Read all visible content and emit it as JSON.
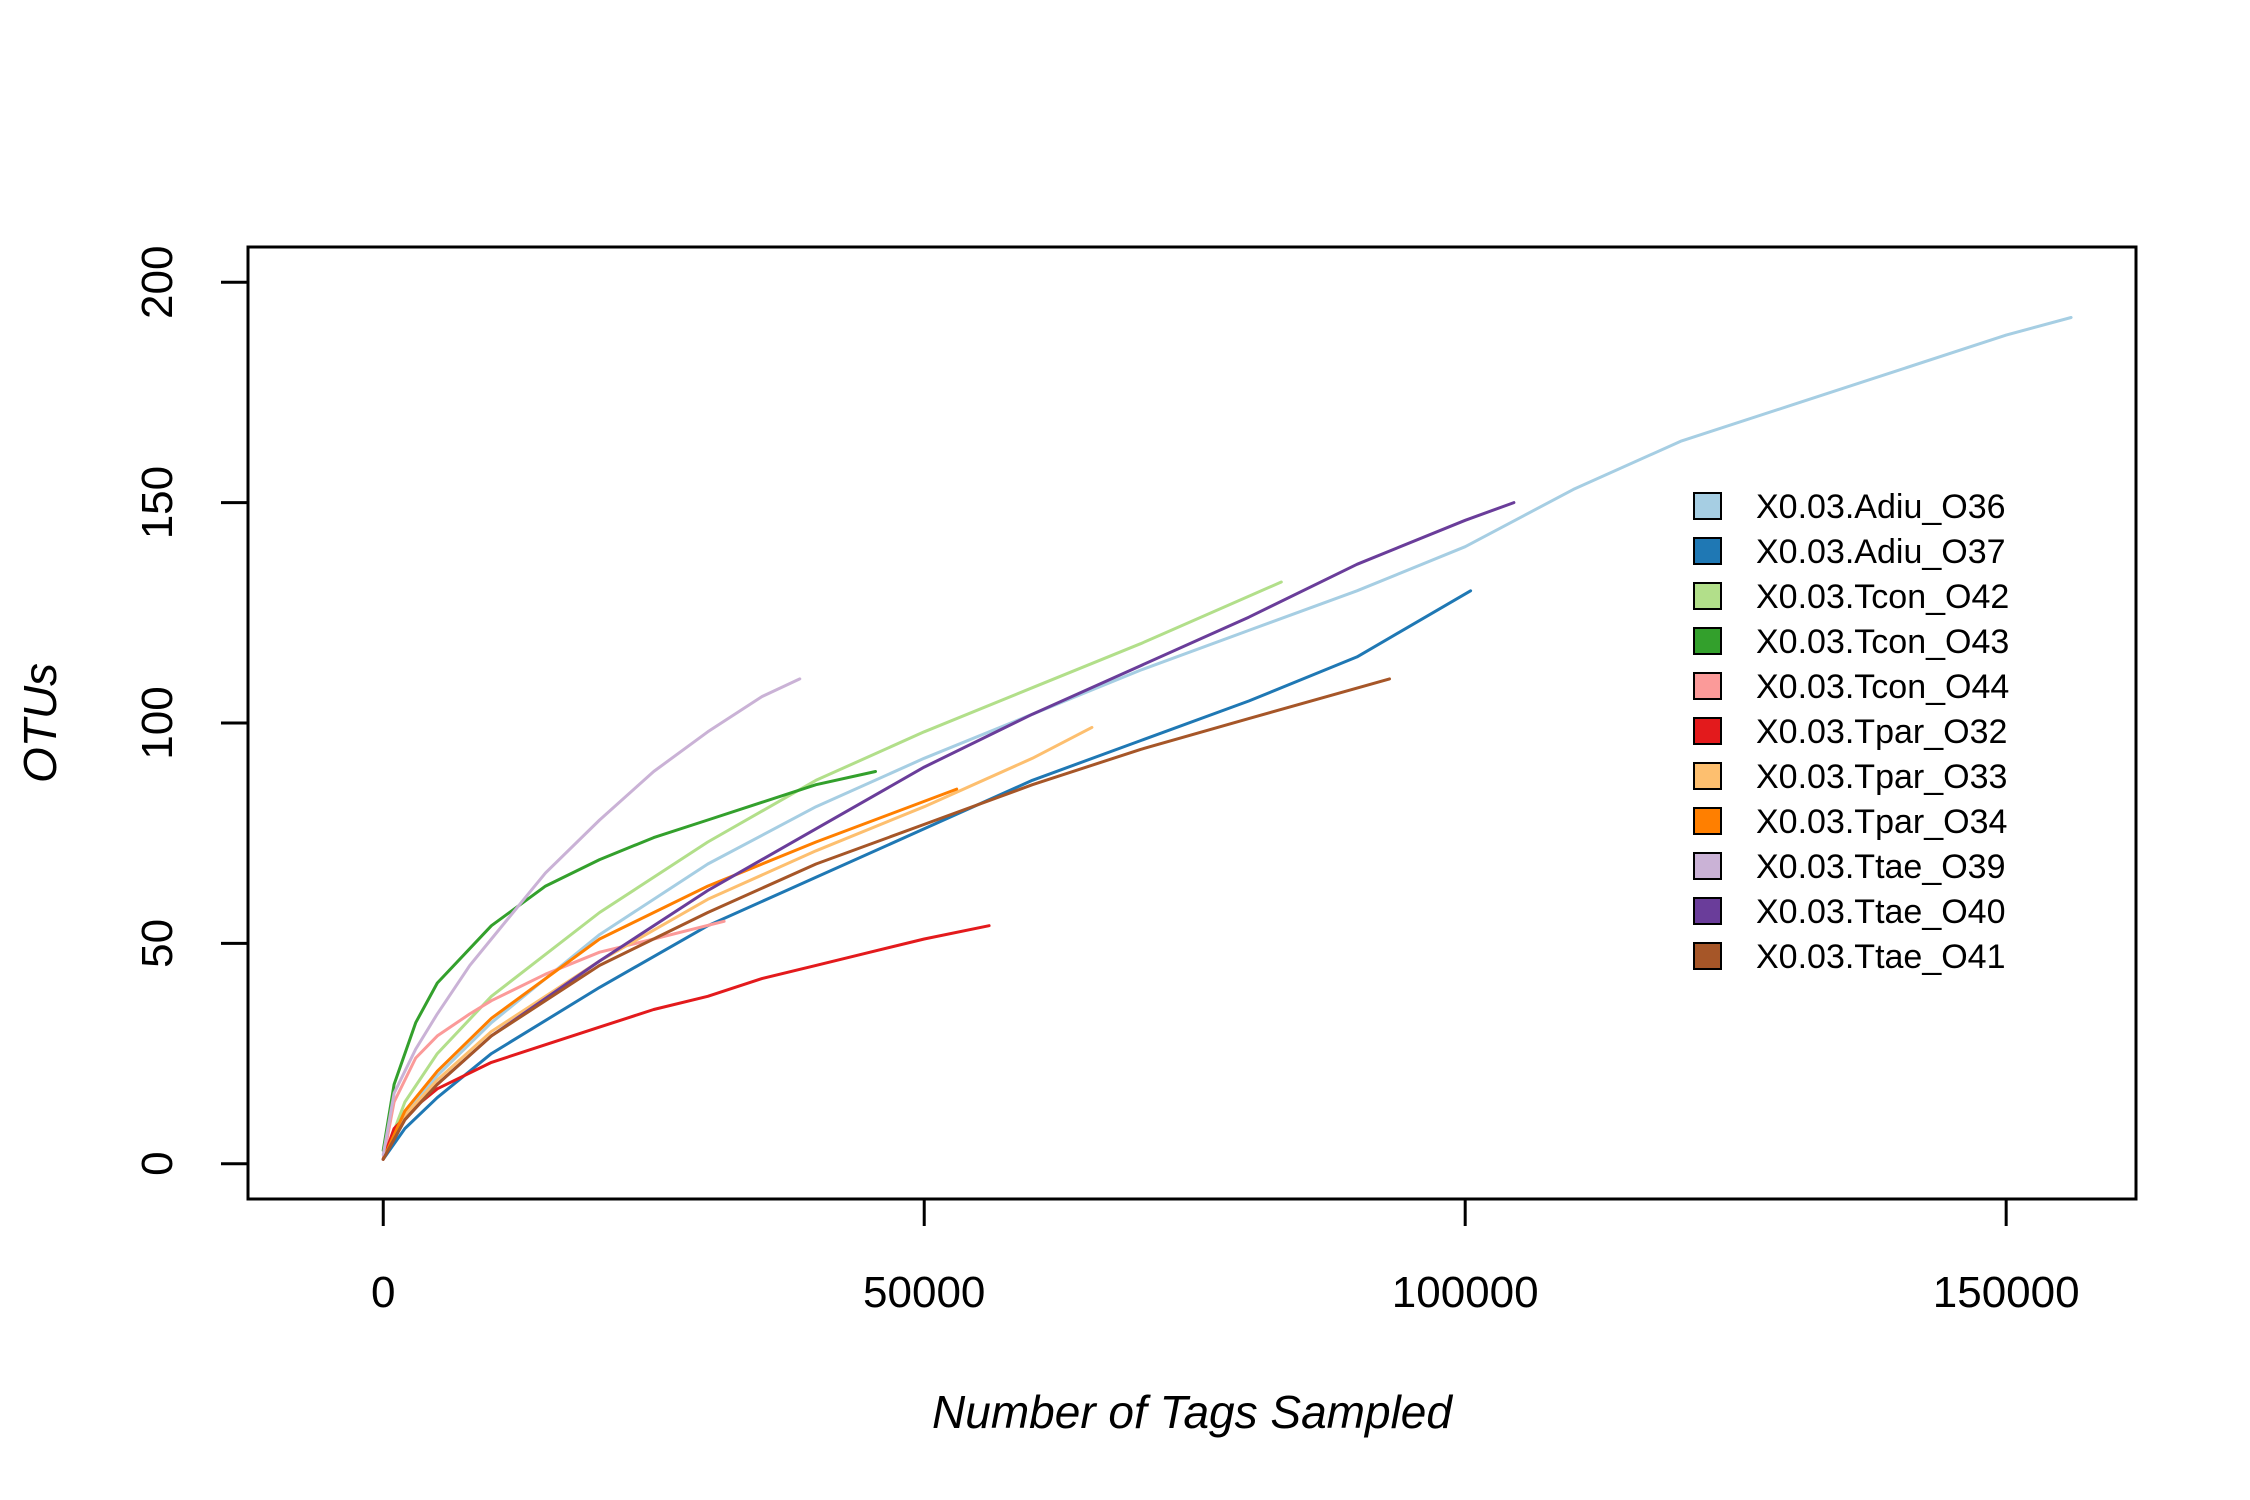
{
  "chart_data": {
    "type": "line",
    "title": "",
    "xlabel": "Number of Tags Sampled",
    "ylabel": "OTUs",
    "xlim": [
      -12500,
      162000
    ],
    "ylim": [
      -8,
      208
    ],
    "xticks": [
      0,
      50000,
      100000,
      150000
    ],
    "xtick_labels": [
      "0",
      "50000",
      "100000",
      "150000"
    ],
    "yticks": [
      0,
      50,
      100,
      150,
      200
    ],
    "ytick_labels": [
      "0",
      "50",
      "100",
      "150",
      "200"
    ],
    "grid": false,
    "legend_position": "right",
    "series": [
      {
        "name": "X0.03.Adiu_O36",
        "color": "#A6CEE3",
        "x": [
          0,
          2000,
          5000,
          10000,
          20000,
          30000,
          40000,
          50000,
          60000,
          70000,
          80000,
          90000,
          100000,
          110000,
          120000,
          130000,
          140000,
          150000,
          156000
        ],
        "y": [
          1,
          11,
          20,
          32,
          52,
          68,
          81,
          92,
          102,
          112,
          121,
          130,
          140,
          153,
          164,
          172,
          180,
          188,
          192
        ]
      },
      {
        "name": "X0.03.Adiu_O37",
        "color": "#1F78B4",
        "x": [
          0,
          2000,
          5000,
          10000,
          20000,
          30000,
          40000,
          50000,
          60000,
          70000,
          80000,
          90000,
          100500
        ],
        "y": [
          1,
          8,
          15,
          25,
          40,
          54,
          65,
          76,
          87,
          96,
          105,
          115,
          130
        ]
      },
      {
        "name": "X0.03.Tcon_O42",
        "color": "#B2DF8A",
        "x": [
          0,
          2000,
          5000,
          10000,
          20000,
          30000,
          40000,
          50000,
          60000,
          70000,
          83000
        ],
        "y": [
          1,
          14,
          25,
          38,
          57,
          73,
          87,
          98,
          108,
          118,
          132
        ]
      },
      {
        "name": "X0.03.Tcon_O43",
        "color": "#33A02C",
        "x": [
          0,
          1000,
          3000,
          5000,
          10000,
          15000,
          20000,
          25000,
          30000,
          35000,
          40000,
          45500
        ],
        "y": [
          3,
          18,
          32,
          41,
          54,
          63,
          69,
          74,
          78,
          82,
          86,
          89
        ]
      },
      {
        "name": "X0.03.Tcon_O44",
        "color": "#FB9A99",
        "x": [
          0,
          1000,
          3000,
          5000,
          8000,
          10000,
          15000,
          20000,
          25000,
          31500
        ],
        "y": [
          1,
          14,
          24,
          29,
          34,
          37,
          43,
          48,
          51,
          55
        ]
      },
      {
        "name": "X0.03.Tpar_O32",
        "color": "#E31A1C",
        "x": [
          0,
          1000,
          3000,
          5000,
          10000,
          15000,
          20000,
          25000,
          30000,
          35000,
          40000,
          45000,
          50000,
          56000
        ],
        "y": [
          1,
          8,
          13,
          17,
          23,
          27,
          31,
          35,
          38,
          42,
          45,
          48,
          51,
          54
        ]
      },
      {
        "name": "X0.03.Tpar_O33",
        "color": "#FDBF6F",
        "x": [
          0,
          2000,
          5000,
          10000,
          20000,
          30000,
          40000,
          50000,
          60000,
          65500
        ],
        "y": [
          1,
          11,
          19,
          30,
          46,
          60,
          71,
          81,
          92,
          99
        ]
      },
      {
        "name": "X0.03.Tpar_O34",
        "color": "#FF7F00",
        "x": [
          0,
          2000,
          5000,
          10000,
          20000,
          30000,
          40000,
          53000
        ],
        "y": [
          1,
          12,
          21,
          33,
          51,
          63,
          73,
          85
        ]
      },
      {
        "name": "X0.03.Ttae_O39",
        "color": "#CAB2D6",
        "x": [
          0,
          1000,
          3000,
          5000,
          8000,
          10000,
          15000,
          20000,
          25000,
          30000,
          35000,
          38500
        ],
        "y": [
          2,
          16,
          26,
          34,
          45,
          51,
          66,
          78,
          89,
          98,
          106,
          110
        ]
      },
      {
        "name": "X0.03.Ttae_O40",
        "color": "#6A3D9A",
        "x": [
          0,
          2000,
          5000,
          10000,
          20000,
          30000,
          40000,
          50000,
          60000,
          70000,
          80000,
          90000,
          100000,
          104500
        ],
        "y": [
          1,
          10,
          18,
          29,
          46,
          62,
          76,
          90,
          102,
          113,
          124,
          136,
          146,
          150
        ]
      },
      {
        "name": "X0.03.Ttae_O41",
        "color": "#A65628",
        "x": [
          0,
          2000,
          5000,
          10000,
          20000,
          30000,
          40000,
          50000,
          60000,
          70000,
          80000,
          93000
        ],
        "y": [
          1,
          10,
          18,
          29,
          45,
          57,
          68,
          77,
          86,
          94,
          101,
          110
        ]
      }
    ]
  }
}
